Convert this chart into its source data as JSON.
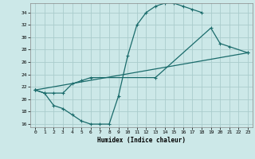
{
  "xlabel": "Humidex (Indice chaleur)",
  "bg_color": "#cce8e8",
  "grid_color": "#aacccc",
  "line_color": "#1a6b6b",
  "xlim": [
    -0.5,
    23.5
  ],
  "ylim": [
    15.5,
    35.5
  ],
  "yticks": [
    16,
    18,
    20,
    22,
    24,
    26,
    28,
    30,
    32,
    34
  ],
  "xticks": [
    0,
    1,
    2,
    3,
    4,
    5,
    6,
    7,
    8,
    9,
    10,
    11,
    12,
    13,
    14,
    15,
    16,
    17,
    18,
    19,
    20,
    21,
    22,
    23
  ],
  "curve1_x": [
    0,
    1,
    2,
    3,
    4,
    5,
    6,
    7,
    8,
    9,
    10,
    11,
    12,
    13,
    14,
    15,
    16,
    17,
    18
  ],
  "curve1_y": [
    21.5,
    21.0,
    19.0,
    18.5,
    17.5,
    16.5,
    16.0,
    16.0,
    16.0,
    20.5,
    27.0,
    32.0,
    34.0,
    35.0,
    35.5,
    35.5,
    35.0,
    34.5,
    34.0
  ],
  "curve2_x": [
    0,
    1,
    2,
    3,
    4,
    5,
    6,
    13,
    19,
    20,
    21,
    23
  ],
  "curve2_y": [
    21.5,
    21.0,
    21.0,
    21.0,
    22.5,
    23.0,
    23.5,
    23.5,
    31.5,
    29.0,
    28.5,
    27.5
  ],
  "curve3_x": [
    0,
    23
  ],
  "curve3_y": [
    21.5,
    27.5
  ]
}
